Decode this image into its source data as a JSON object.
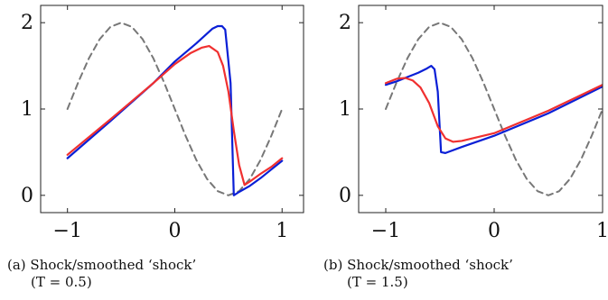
{
  "chart_data": [
    {
      "type": "line",
      "title": "",
      "xlabel": "",
      "ylabel": "",
      "xlim": [
        -1.25,
        1.2
      ],
      "ylim": [
        -0.2,
        2.2
      ],
      "xticks": [
        "−1",
        "0",
        "1"
      ],
      "yticks": [
        "0",
        "1",
        "2"
      ],
      "grid": false,
      "series": [
        {
          "color": "#777777",
          "style": "dashed",
          "x": [
            -1.0,
            -0.9,
            -0.8,
            -0.7,
            -0.6,
            -0.5,
            -0.4,
            -0.3,
            -0.2,
            -0.1,
            0.0,
            0.1,
            0.2,
            0.3,
            0.4,
            0.5,
            0.6,
            0.7,
            0.8,
            0.9,
            1.0
          ],
          "y": [
            1.0,
            1.309,
            1.588,
            1.809,
            1.951,
            2.0,
            1.951,
            1.809,
            1.588,
            1.309,
            1.0,
            0.691,
            0.412,
            0.191,
            0.049,
            0.0,
            0.049,
            0.191,
            0.412,
            0.691,
            1.0
          ]
        },
        {
          "color": "#0a1fd6",
          "style": "solid",
          "x": [
            -1.0,
            -0.6,
            -0.2,
            0.0,
            0.2,
            0.35,
            0.4,
            0.44,
            0.47,
            0.52,
            0.55,
            0.6,
            0.7,
            0.8,
            0.9,
            1.0
          ],
          "y": [
            0.43,
            0.86,
            1.3,
            1.55,
            1.76,
            1.93,
            1.96,
            1.96,
            1.92,
            1.3,
            0.0,
            0.04,
            0.11,
            0.2,
            0.3,
            0.4
          ]
        },
        {
          "color": "#f03030",
          "style": "solid",
          "x": [
            -1.0,
            -0.6,
            -0.2,
            0.0,
            0.15,
            0.25,
            0.32,
            0.4,
            0.45,
            0.5,
            0.55,
            0.6,
            0.65,
            0.7,
            0.8,
            0.9,
            1.0
          ],
          "y": [
            0.47,
            0.88,
            1.3,
            1.52,
            1.65,
            1.71,
            1.73,
            1.66,
            1.5,
            1.2,
            0.75,
            0.35,
            0.12,
            0.16,
            0.25,
            0.33,
            0.43
          ]
        }
      ]
    },
    {
      "type": "line",
      "title": "",
      "xlabel": "",
      "ylabel": "",
      "xlim": [
        -1.25,
        1.0
      ],
      "ylim": [
        -0.2,
        2.2
      ],
      "xticks": [
        "−1",
        "0",
        "1"
      ],
      "yticks": [
        "0",
        "1",
        "2"
      ],
      "grid": false,
      "series": [
        {
          "color": "#777777",
          "style": "dashed",
          "x": [
            -1.0,
            -0.9,
            -0.8,
            -0.7,
            -0.6,
            -0.5,
            -0.4,
            -0.3,
            -0.2,
            -0.1,
            0.0,
            0.1,
            0.2,
            0.3,
            0.4,
            0.5,
            0.6,
            0.7,
            0.8,
            0.9,
            1.0
          ],
          "y": [
            1.0,
            1.309,
            1.588,
            1.809,
            1.951,
            2.0,
            1.951,
            1.809,
            1.588,
            1.309,
            1.0,
            0.691,
            0.412,
            0.191,
            0.049,
            0.0,
            0.049,
            0.191,
            0.412,
            0.691,
            1.0
          ]
        },
        {
          "color": "#0a1fd6",
          "style": "solid",
          "x": [
            -1.0,
            -0.9,
            -0.8,
            -0.7,
            -0.62,
            -0.58,
            -0.55,
            -0.52,
            -0.49,
            -0.45,
            -0.3,
            0.0,
            0.5,
            1.0
          ],
          "y": [
            1.28,
            1.32,
            1.37,
            1.42,
            1.47,
            1.5,
            1.46,
            1.2,
            0.5,
            0.49,
            0.56,
            0.69,
            0.95,
            1.26
          ]
        },
        {
          "color": "#f03030",
          "style": "solid",
          "x": [
            -1.0,
            -0.9,
            -0.82,
            -0.75,
            -0.68,
            -0.6,
            -0.52,
            -0.45,
            -0.38,
            -0.3,
            0.0,
            0.5,
            1.0
          ],
          "y": [
            1.3,
            1.35,
            1.36,
            1.33,
            1.25,
            1.07,
            0.8,
            0.66,
            0.62,
            0.63,
            0.72,
            0.98,
            1.28
          ]
        }
      ]
    }
  ],
  "captions": [
    {
      "line1": "(a) Shock/smoothed ‘shock’",
      "line2": "(T = 0.5)"
    },
    {
      "line1": "(b) Shock/smoothed ‘shock’",
      "line2": "(T = 1.5)"
    }
  ]
}
